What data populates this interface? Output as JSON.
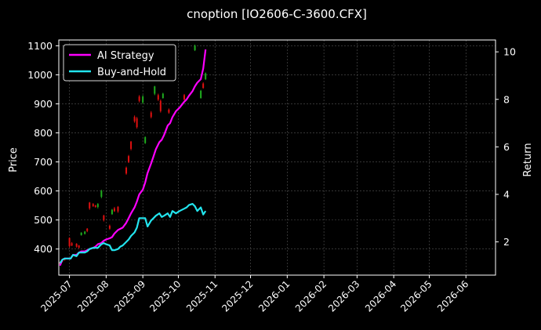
{
  "chart_data": {
    "type": "line",
    "title": "cnoption [IO2606-C-3600.CFX]",
    "ylabel": "Price",
    "y2label": "Return",
    "grid": true,
    "legend_position": "top-left",
    "xlim": [
      "2025-06-22",
      "2026-06-26"
    ],
    "ylim": [
      310,
      1120
    ],
    "y2lim": [
      0.6,
      10.5
    ],
    "x_ticks": [
      "2025-07",
      "2025-08",
      "2025-09",
      "2025-10",
      "2025-11",
      "2025-12",
      "2026-01",
      "2026-02",
      "2026-03",
      "2026-04",
      "2026-05",
      "2026-06"
    ],
    "x_tick_dates": [
      "2025-07-01",
      "2025-08-01",
      "2025-09-01",
      "2025-10-01",
      "2025-11-01",
      "2025-12-01",
      "2026-01-01",
      "2026-02-01",
      "2026-03-01",
      "2026-04-01",
      "2026-05-01",
      "2026-06-01"
    ],
    "y_ticks": [
      400,
      500,
      600,
      700,
      800,
      900,
      1000,
      1100
    ],
    "y2_ticks": [
      2,
      4,
      6,
      8,
      10
    ],
    "colors": {
      "up": "#1fae1f",
      "down": "#e01010",
      "ai": "#ff00ff",
      "bh": "#22e5ee"
    },
    "series": [
      {
        "name": "AI Strategy",
        "axis": "right",
        "color": "#ff00ff",
        "x": [
          "2025-06-23",
          "2025-06-25",
          "2025-06-27",
          "2025-06-30",
          "2025-07-02",
          "2025-07-04",
          "2025-07-07",
          "2025-07-09",
          "2025-07-11",
          "2025-07-14",
          "2025-07-16",
          "2025-07-18",
          "2025-07-21",
          "2025-07-23",
          "2025-07-25",
          "2025-07-28",
          "2025-07-30",
          "2025-08-01",
          "2025-08-04",
          "2025-08-06",
          "2025-08-08",
          "2025-08-11",
          "2025-08-13",
          "2025-08-15",
          "2025-08-18",
          "2025-08-20",
          "2025-08-22",
          "2025-08-25",
          "2025-08-27",
          "2025-08-29",
          "2025-09-01",
          "2025-09-03",
          "2025-09-05",
          "2025-09-08",
          "2025-09-10",
          "2025-09-12",
          "2025-09-15",
          "2025-09-17",
          "2025-09-19",
          "2025-09-22",
          "2025-09-24",
          "2025-09-26",
          "2025-09-29",
          "2025-10-02",
          "2025-10-06",
          "2025-10-08",
          "2025-10-10",
          "2025-10-13",
          "2025-10-15",
          "2025-10-17",
          "2025-10-20",
          "2025-10-22",
          "2025-10-24"
        ],
        "values": [
          1.0,
          1.25,
          1.3,
          1.3,
          1.3,
          1.45,
          1.45,
          1.55,
          1.6,
          1.6,
          1.65,
          1.7,
          1.75,
          1.8,
          1.9,
          1.95,
          2.05,
          2.1,
          2.15,
          2.2,
          2.35,
          2.5,
          2.55,
          2.6,
          2.8,
          3.0,
          3.2,
          3.45,
          3.7,
          4.0,
          4.2,
          4.5,
          4.9,
          5.3,
          5.6,
          5.9,
          6.2,
          6.3,
          6.5,
          6.9,
          7.0,
          7.25,
          7.5,
          7.65,
          7.9,
          8.0,
          8.15,
          8.35,
          8.55,
          8.7,
          8.85,
          9.3,
          10.1
        ]
      },
      {
        "name": "Buy-and-Hold",
        "axis": "right",
        "color": "#22e5ee",
        "x": [
          "2025-06-23",
          "2025-06-25",
          "2025-06-27",
          "2025-06-30",
          "2025-07-02",
          "2025-07-04",
          "2025-07-07",
          "2025-07-09",
          "2025-07-11",
          "2025-07-14",
          "2025-07-16",
          "2025-07-18",
          "2025-07-21",
          "2025-07-23",
          "2025-07-25",
          "2025-07-28",
          "2025-07-30",
          "2025-08-01",
          "2025-08-04",
          "2025-08-06",
          "2025-08-08",
          "2025-08-11",
          "2025-08-13",
          "2025-08-15",
          "2025-08-18",
          "2025-08-20",
          "2025-08-22",
          "2025-08-25",
          "2025-08-27",
          "2025-08-29",
          "2025-09-01",
          "2025-09-03",
          "2025-09-05",
          "2025-09-08",
          "2025-09-10",
          "2025-09-12",
          "2025-09-15",
          "2025-09-17",
          "2025-09-19",
          "2025-09-22",
          "2025-09-24",
          "2025-09-26",
          "2025-09-29",
          "2025-10-02",
          "2025-10-06",
          "2025-10-08",
          "2025-10-10",
          "2025-10-13",
          "2025-10-15",
          "2025-10-17",
          "2025-10-20",
          "2025-10-22",
          "2025-10-24"
        ],
        "values": [
          1.1,
          1.25,
          1.3,
          1.3,
          1.3,
          1.45,
          1.4,
          1.55,
          1.55,
          1.55,
          1.6,
          1.7,
          1.75,
          1.75,
          1.75,
          1.9,
          1.95,
          1.9,
          1.85,
          1.65,
          1.65,
          1.7,
          1.8,
          1.85,
          2.0,
          2.1,
          2.25,
          2.4,
          2.6,
          3.0,
          3.0,
          3.0,
          2.65,
          2.9,
          3.0,
          3.1,
          3.2,
          3.05,
          3.1,
          3.2,
          3.05,
          3.3,
          3.2,
          3.3,
          3.4,
          3.45,
          3.55,
          3.6,
          3.5,
          3.3,
          3.45,
          3.15,
          3.3
        ]
      }
    ],
    "candles": [
      {
        "date": "2025-06-23",
        "open": 355,
        "close": 348,
        "high": 356,
        "low": 344
      },
      {
        "date": "2025-06-25",
        "open": 360,
        "close": 358,
        "high": 362,
        "low": 355
      },
      {
        "date": "2025-06-27",
        "open": 368,
        "close": 362,
        "high": 370,
        "low": 360
      },
      {
        "date": "2025-07-01",
        "open": 438,
        "close": 410,
        "high": 440,
        "low": 405
      },
      {
        "date": "2025-07-03",
        "open": 420,
        "close": 412,
        "high": 424,
        "low": 410
      },
      {
        "date": "2025-07-07",
        "open": 418,
        "close": 408,
        "high": 420,
        "low": 405
      },
      {
        "date": "2025-07-09",
        "open": 412,
        "close": 405,
        "high": 414,
        "low": 402
      },
      {
        "date": "2025-07-11",
        "open": 448,
        "close": 456,
        "high": 458,
        "low": 446
      },
      {
        "date": "2025-07-14",
        "open": 452,
        "close": 460,
        "high": 462,
        "low": 450
      },
      {
        "date": "2025-07-16",
        "open": 470,
        "close": 462,
        "high": 472,
        "low": 458
      },
      {
        "date": "2025-07-18",
        "open": 560,
        "close": 540,
        "high": 562,
        "low": 535
      },
      {
        "date": "2025-07-21",
        "open": 555,
        "close": 548,
        "high": 558,
        "low": 545
      },
      {
        "date": "2025-07-23",
        "open": 550,
        "close": 545,
        "high": 552,
        "low": 542
      },
      {
        "date": "2025-07-25",
        "open": 545,
        "close": 555,
        "high": 558,
        "low": 540
      },
      {
        "date": "2025-07-28",
        "open": 580,
        "close": 600,
        "high": 604,
        "low": 575
      },
      {
        "date": "2025-07-30",
        "open": 515,
        "close": 500,
        "high": 518,
        "low": 495
      },
      {
        "date": "2025-08-04",
        "open": 480,
        "close": 470,
        "high": 484,
        "low": 466
      },
      {
        "date": "2025-08-06",
        "open": 520,
        "close": 535,
        "high": 538,
        "low": 518
      },
      {
        "date": "2025-08-08",
        "open": 540,
        "close": 530,
        "high": 545,
        "low": 528
      },
      {
        "date": "2025-08-11",
        "open": 545,
        "close": 530,
        "high": 548,
        "low": 525
      },
      {
        "date": "2025-08-18",
        "open": 680,
        "close": 660,
        "high": 684,
        "low": 656
      },
      {
        "date": "2025-08-20",
        "open": 720,
        "close": 700,
        "high": 724,
        "low": 696
      },
      {
        "date": "2025-08-22",
        "open": 770,
        "close": 745,
        "high": 772,
        "low": 740
      },
      {
        "date": "2025-08-25",
        "open": 855,
        "close": 840,
        "high": 860,
        "low": 835
      },
      {
        "date": "2025-08-27",
        "open": 850,
        "close": 820,
        "high": 855,
        "low": 815
      },
      {
        "date": "2025-08-29",
        "open": 925,
        "close": 910,
        "high": 930,
        "low": 905
      },
      {
        "date": "2025-09-01",
        "open": 905,
        "close": 925,
        "high": 930,
        "low": 900
      },
      {
        "date": "2025-09-03",
        "open": 765,
        "close": 785,
        "high": 788,
        "low": 762
      },
      {
        "date": "2025-09-08",
        "open": 870,
        "close": 855,
        "high": 875,
        "low": 850
      },
      {
        "date": "2025-09-11",
        "open": 935,
        "close": 960,
        "high": 962,
        "low": 930
      },
      {
        "date": "2025-09-14",
        "open": 930,
        "close": 915,
        "high": 935,
        "low": 910
      },
      {
        "date": "2025-09-16",
        "open": 910,
        "close": 875,
        "high": 915,
        "low": 870
      },
      {
        "date": "2025-09-18",
        "open": 920,
        "close": 935,
        "high": 938,
        "low": 918
      },
      {
        "date": "2025-09-23",
        "open": 880,
        "close": 870,
        "high": 884,
        "low": 866
      },
      {
        "date": "2025-10-06",
        "open": 930,
        "close": 915,
        "high": 934,
        "low": 912
      },
      {
        "date": "2025-10-15",
        "open": 1085,
        "close": 1100,
        "high": 1104,
        "low": 1082
      },
      {
        "date": "2025-10-20",
        "open": 920,
        "close": 945,
        "high": 948,
        "low": 918
      },
      {
        "date": "2025-10-22",
        "open": 970,
        "close": 955,
        "high": 974,
        "low": 952
      },
      {
        "date": "2025-10-24",
        "open": 985,
        "close": 1005,
        "high": 1008,
        "low": 982
      }
    ]
  }
}
